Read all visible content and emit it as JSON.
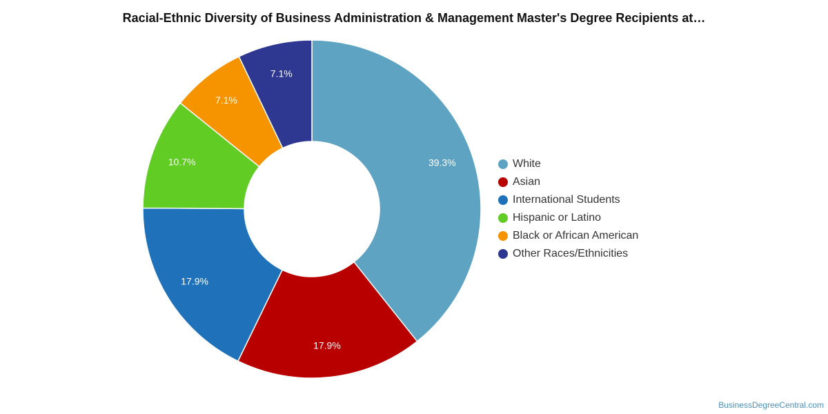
{
  "chart_data": {
    "type": "pie",
    "variant": "donut",
    "title": "Racial-Ethnic Diversity of Business Administration & Management Master's Degree Recipients at…",
    "categories": [
      "White",
      "Asian",
      "International Students",
      "Hispanic or Latino",
      "Black or African American",
      "Other Races/Ethnicities"
    ],
    "values": [
      39.3,
      17.9,
      17.9,
      10.7,
      7.1,
      7.1
    ],
    "labels": [
      "39.3%",
      "17.9%",
      "17.9%",
      "10.7%",
      "7.1%",
      "7.1%"
    ],
    "colors": [
      "#5ea3c1",
      "#b80000",
      "#1f72b9",
      "#60cc24",
      "#f69400",
      "#2e3890"
    ],
    "legend_position": "right"
  },
  "watermark": "BusinessDegreeCentral.com"
}
